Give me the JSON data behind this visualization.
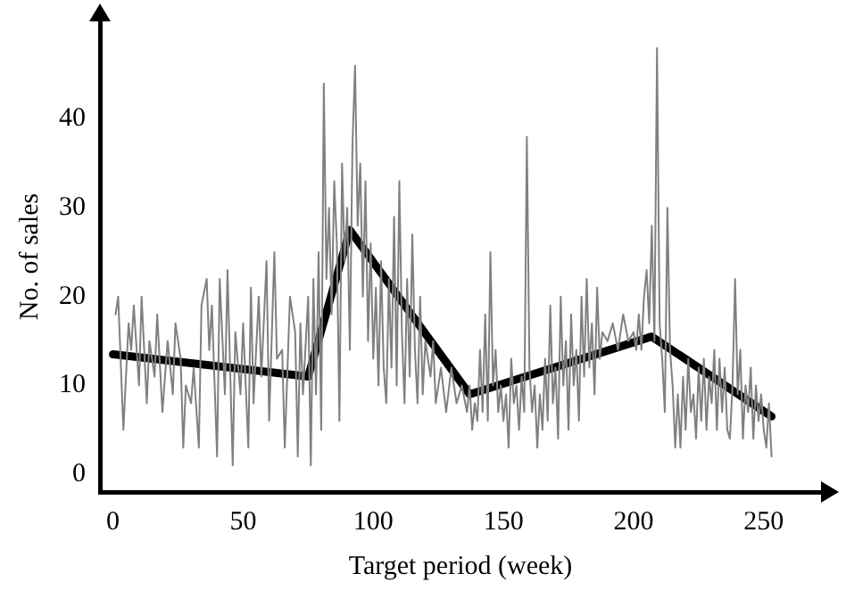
{
  "chart_data": {
    "type": "line",
    "xlabel": "Target period (week)",
    "ylabel": "No. of sales",
    "xlim": [
      -5,
      272
    ],
    "xticks": [
      0,
      50,
      100,
      150,
      200,
      250
    ],
    "ylim": [
      -2,
      51
    ],
    "yticks": [
      0,
      10,
      20,
      30,
      40
    ],
    "grid": false,
    "legend": false,
    "marker": "none",
    "line_style": "solid",
    "series": [
      {
        "color": "#808080",
        "x": [
          1,
          2,
          4,
          6,
          7,
          8,
          10,
          11,
          13,
          14,
          16,
          17,
          19,
          21,
          23,
          24,
          26,
          27,
          28,
          30,
          31,
          33,
          34,
          36,
          37,
          38,
          40,
          41,
          43,
          44,
          46,
          47,
          49,
          50,
          52,
          53,
          54,
          56,
          57,
          59,
          60,
          62,
          63,
          65,
          66,
          68,
          70,
          71,
          72,
          73,
          75,
          76,
          77,
          78,
          79,
          80,
          81,
          82,
          83,
          84,
          85,
          86,
          87,
          88,
          89,
          90,
          91,
          92,
          93,
          94,
          95,
          96,
          97,
          98,
          99,
          100,
          101,
          102,
          103,
          104,
          105,
          106,
          107,
          108,
          109,
          110,
          111,
          112,
          113,
          114,
          115,
          116,
          117,
          118,
          119,
          120,
          122,
          123,
          124,
          126,
          128,
          130,
          132,
          134,
          136,
          137,
          138,
          139,
          140,
          141,
          142,
          143,
          144,
          145,
          146,
          147,
          148,
          149,
          150,
          151,
          152,
          153,
          154,
          155,
          156,
          157,
          158,
          159,
          160,
          161,
          162,
          163,
          164,
          165,
          166,
          167,
          168,
          169,
          170,
          171,
          172,
          173,
          174,
          175,
          176,
          177,
          178,
          179,
          180,
          181,
          182,
          183,
          184,
          185,
          186,
          187,
          188,
          190,
          192,
          194,
          196,
          198,
          200,
          201,
          202,
          203,
          204,
          205,
          206,
          207,
          208,
          209,
          210,
          211,
          212,
          213,
          214,
          215,
          216,
          217,
          218,
          219,
          220,
          221,
          222,
          223,
          224,
          225,
          226,
          227,
          228,
          229,
          230,
          231,
          232,
          233,
          234,
          235,
          236,
          237,
          238,
          239,
          240,
          241,
          242,
          243,
          244,
          245,
          246,
          247,
          248,
          249,
          250,
          251,
          252,
          253
        ],
        "values": [
          18,
          20,
          5,
          17,
          14,
          19,
          10,
          20,
          8,
          15,
          11,
          18,
          7,
          15,
          9,
          17,
          13,
          3,
          10,
          8,
          12,
          3,
          19,
          22,
          14,
          19,
          2,
          22,
          9,
          23,
          1,
          16,
          9,
          17,
          3,
          21,
          8,
          20,
          11,
          24,
          6,
          25,
          13,
          14,
          3,
          20,
          16,
          2,
          17,
          9,
          20,
          1,
          22,
          9,
          25,
          5,
          44,
          22,
          30,
          18,
          33,
          26,
          6,
          35,
          24,
          30,
          14,
          37,
          46,
          28,
          35,
          20,
          33,
          15,
          26,
          13,
          21,
          10,
          24,
          12,
          8,
          22,
          12,
          29,
          10,
          33,
          16,
          8,
          22,
          11,
          27,
          14,
          8,
          20,
          9,
          15,
          11,
          15,
          8,
          12,
          7,
          12,
          8,
          10,
          7,
          10,
          5,
          8,
          6,
          14,
          7,
          18,
          6,
          25,
          10,
          14,
          7,
          10,
          6,
          9,
          3,
          13,
          8,
          10,
          5,
          11,
          7,
          38,
          12,
          7,
          10,
          3,
          9,
          5,
          13,
          6,
          19,
          8,
          12,
          4,
          20,
          10,
          15,
          5,
          18,
          10,
          14,
          6,
          20,
          11,
          22,
          12,
          17,
          9,
          21,
          13,
          16,
          15,
          17,
          14,
          18,
          15,
          16,
          14,
          18,
          14,
          20,
          23,
          17,
          28,
          15,
          48,
          17,
          13,
          7,
          30,
          14,
          10,
          3,
          9,
          3,
          11,
          5,
          13,
          7,
          9,
          4,
          12,
          6,
          13,
          5,
          11,
          8,
          14,
          5,
          13,
          7,
          12,
          5,
          4,
          10,
          22,
          9,
          14,
          4,
          10,
          7,
          12,
          4,
          10,
          6,
          9,
          5,
          3,
          8,
          2
        ]
      },
      {
        "color": "#000000",
        "x": [
          0,
          75,
          91,
          137,
          207,
          253
        ],
        "values": [
          13.5,
          11,
          27.5,
          9,
          15.5,
          6.5
        ]
      }
    ]
  }
}
